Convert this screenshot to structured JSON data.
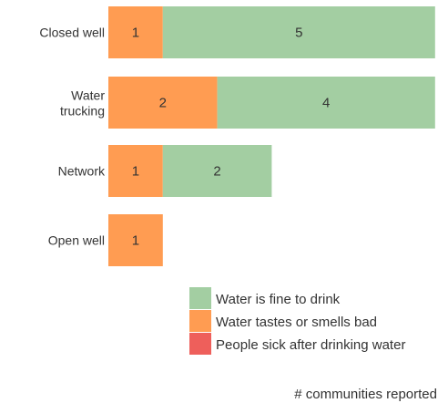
{
  "chart_data": {
    "type": "bar",
    "orientation": "horizontal",
    "stacked": true,
    "categories": [
      "Closed well",
      "Water trucking",
      "Network",
      "Open well"
    ],
    "series": [
      {
        "name": "People sick after drinking water",
        "color": "#ee5f5b",
        "values": [
          0,
          0,
          0,
          0
        ]
      },
      {
        "name": "Water tastes or smells bad",
        "color": "#ff9c52",
        "values": [
          1,
          2,
          1,
          1
        ]
      },
      {
        "name": "Water is fine to drink",
        "color": "#a3cea2",
        "values": [
          5,
          4,
          2,
          0
        ]
      }
    ],
    "legend_order": [
      "Water is fine to drink",
      "Water tastes or smells bad",
      "People sick after drinking water"
    ],
    "legend_position": "bottom-right",
    "xlabel": "# communities reported",
    "xlim": [
      0,
      6
    ],
    "grid": false
  }
}
